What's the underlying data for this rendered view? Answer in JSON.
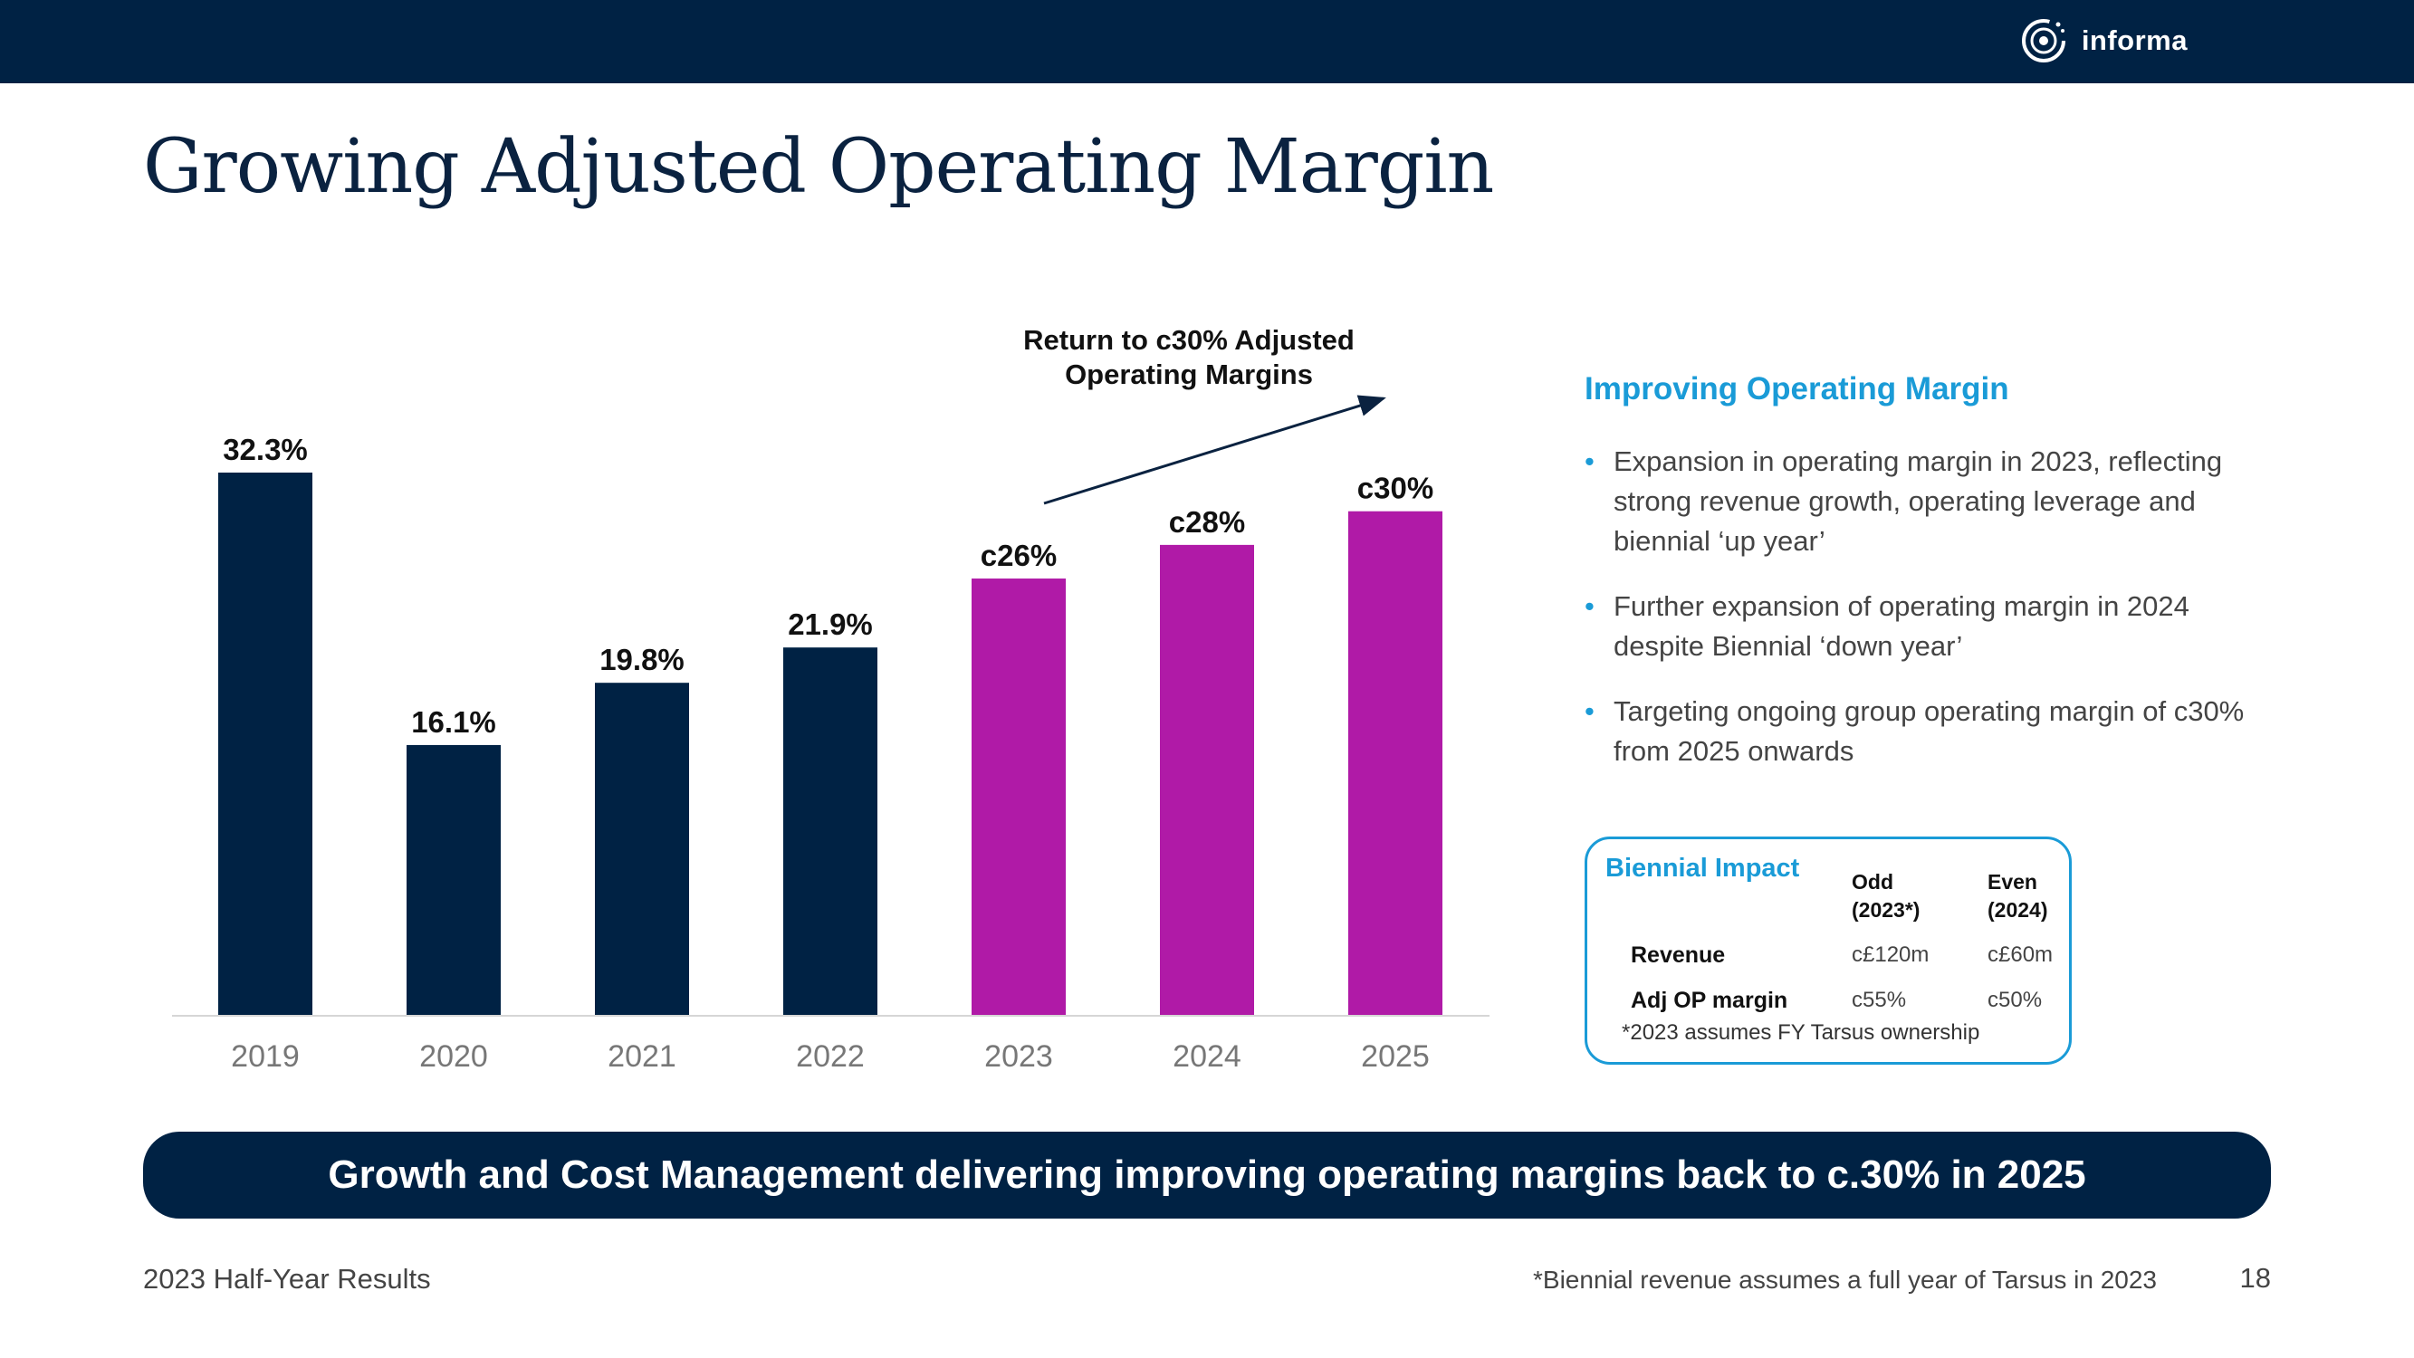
{
  "brand": {
    "logo_text": "informa",
    "logo_icon": "informa-ring-logo-icon",
    "navy": "#002244",
    "accent": "#1a9bd7",
    "forecast": "#b01aa7"
  },
  "title": "Growing Adjusted Operating Margin",
  "chart_data": {
    "type": "bar",
    "categories": [
      "2019",
      "2020",
      "2021",
      "2022",
      "2023",
      "2024",
      "2025"
    ],
    "values": [
      32.3,
      16.1,
      19.8,
      21.9,
      26,
      28,
      30
    ],
    "value_labels": [
      "32.3%",
      "16.1%",
      "19.8%",
      "21.9%",
      "c26%",
      "c28%",
      "c30%"
    ],
    "colors": [
      "#002244",
      "#002244",
      "#002244",
      "#002244",
      "#b01aa7",
      "#b01aa7",
      "#b01aa7"
    ],
    "ylim": [
      0,
      32.3
    ],
    "grid": false,
    "annotation": {
      "lines": [
        "Return to c30% Adjusted",
        "Operating Margins"
      ],
      "arrow": "upward trend arrow over 2023–2025"
    }
  },
  "side_panel": {
    "heading": "Improving Operating Margin",
    "bullets": [
      "Expansion in operating margin in 2023, reflecting strong revenue growth, operating leverage and biennial ‘up year’",
      "Further expansion of operating margin in 2024 despite Biennial ‘down year’",
      "Targeting ongoing group operating margin of c30% from 2025 onwards"
    ]
  },
  "biennial": {
    "title": "Biennial Impact",
    "col_odd": [
      "Odd",
      "(2023*)"
    ],
    "col_even": [
      "Even",
      "(2024)"
    ],
    "rows": [
      {
        "label": "Revenue",
        "odd": "c£120m",
        "even": "c£60m"
      },
      {
        "label": "Adj OP margin",
        "odd": "c55%",
        "even": "c50%"
      }
    ],
    "note": "*2023 assumes FY Tarsus ownership"
  },
  "banner": "Growth and Cost Management delivering improving operating margins back to c.30% in 2025",
  "footer": {
    "left": "2023 Half-Year Results",
    "note": "*Biennial revenue assumes a full year of Tarsus in 2023",
    "page": "18"
  }
}
